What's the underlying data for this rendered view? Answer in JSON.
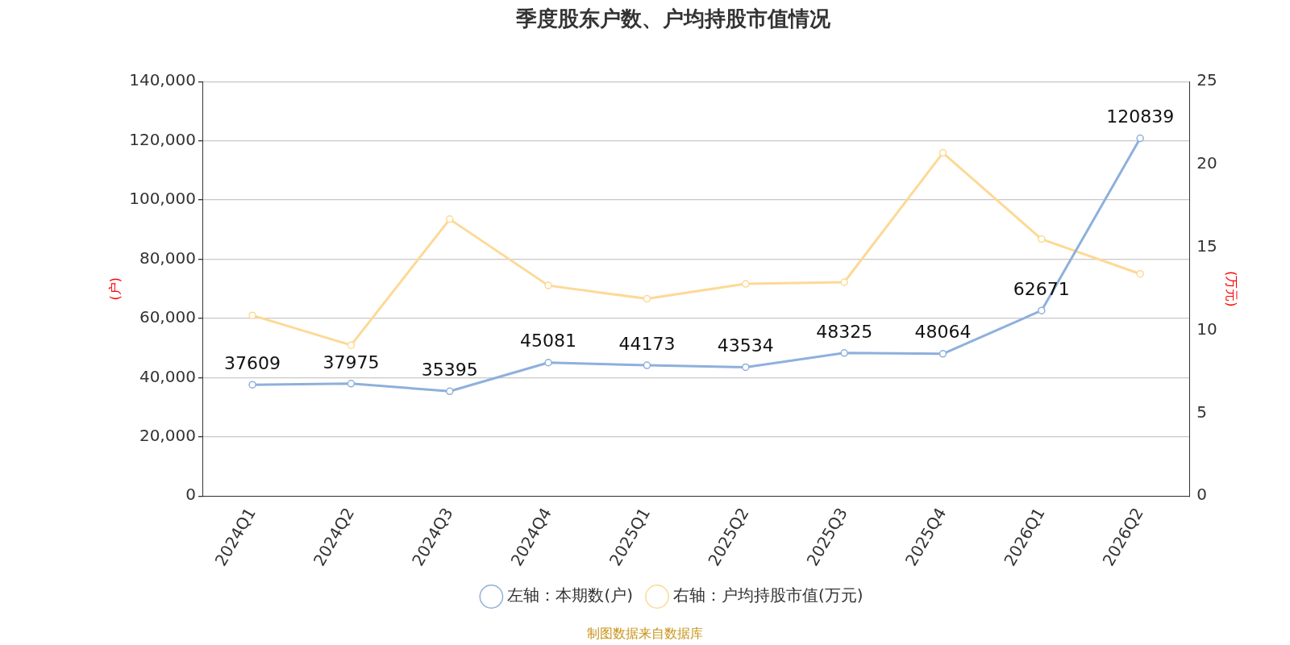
{
  "chart_data": {
    "type": "line",
    "title": "季度股东户数、户均持股市值情况",
    "ylabel": "(户)",
    "y2label": "(万元)",
    "categories": [
      "2024Q1",
      "2024Q2",
      "2024Q3",
      "2024Q4",
      "2025Q1",
      "2025Q2",
      "2025Q3",
      "2025Q4",
      "2026Q1",
      "2026Q2"
    ],
    "series": [
      {
        "name": "左轴：本期数(户)",
        "color": "#8eb0dc",
        "values": [
          37609,
          37975,
          35395,
          45081,
          44173,
          43534,
          48325,
          48064,
          62671,
          120839
        ],
        "value_labels": [
          "37609",
          "37975",
          "35395",
          "45081",
          "44173",
          "43534",
          "48325",
          "48064",
          "62671",
          "120839"
        ]
      },
      {
        "name": "右轴：户均持股市值(万元)",
        "color": "#fdd995",
        "axis": "y2",
        "values": [
          10.9,
          9.1,
          16.7,
          12.7,
          11.9,
          12.8,
          12.9,
          20.7,
          15.5,
          13.4
        ]
      }
    ],
    "ylim": [
      0,
      140000
    ],
    "yticks": [
      {
        "value": 0,
        "label": "0"
      },
      {
        "value": 20000,
        "label": "20,000"
      },
      {
        "value": 40000,
        "label": "40,000"
      },
      {
        "value": 60000,
        "label": "60,000"
      },
      {
        "value": 80000,
        "label": "80,000"
      },
      {
        "value": 100000,
        "label": "100,000"
      },
      {
        "value": 120000,
        "label": "120,000"
      },
      {
        "value": 140000,
        "label": "140,000"
      }
    ],
    "y2lim": [
      0,
      25
    ],
    "y2ticks": [
      0,
      5,
      10,
      15,
      20,
      25
    ],
    "grid": "y",
    "legend": "bottom",
    "marker": "circle",
    "line_style": "solid",
    "annotations": [
      "制图数据来自数据库"
    ]
  }
}
